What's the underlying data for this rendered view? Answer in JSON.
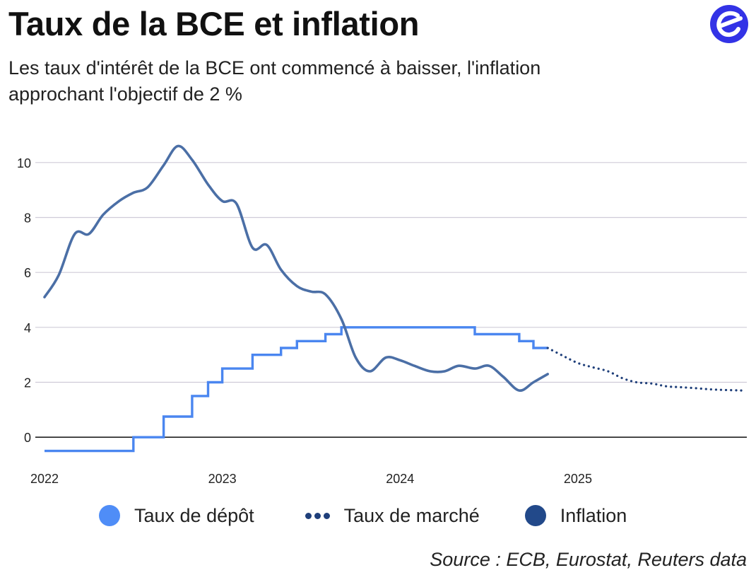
{
  "header": {
    "title": "Taux de la BCE et inflation",
    "subtitle": "Les taux d'intérêt de la BCE ont commencé à baisser, l'inflation approchant l'objectif de 2 %"
  },
  "logo": {
    "icon": "euronews-e-icon",
    "color": "#3333e6"
  },
  "source": "Source : ECB, Eurostat, Reuters data",
  "chart_data": {
    "type": "line",
    "title": "Taux de la BCE et inflation",
    "xlabel": "",
    "ylabel": "",
    "xlim": [
      2022.0,
      2025.95
    ],
    "ylim": [
      -1,
      11
    ],
    "x_ticks": [
      "2022",
      "2023",
      "2024",
      "2025"
    ],
    "y_ticks": [
      "0",
      "2",
      "4",
      "6",
      "8",
      "10"
    ],
    "grid": true,
    "legend_position": "bottom",
    "series": [
      {
        "name": "Taux de dépôt",
        "style": "step",
        "color": "#4a86f0",
        "points": [
          [
            2022.0,
            -0.5
          ],
          [
            2022.5,
            -0.5
          ],
          [
            2022.5,
            0
          ],
          [
            2022.67,
            0
          ],
          [
            2022.67,
            0.75
          ],
          [
            2022.83,
            0.75
          ],
          [
            2022.83,
            1.5
          ],
          [
            2022.92,
            1.5
          ],
          [
            2022.92,
            2.0
          ],
          [
            2023.0,
            2.0
          ],
          [
            2023.0,
            2.5
          ],
          [
            2023.17,
            2.5
          ],
          [
            2023.17,
            3.0
          ],
          [
            2023.33,
            3.0
          ],
          [
            2023.33,
            3.25
          ],
          [
            2023.42,
            3.25
          ],
          [
            2023.42,
            3.5
          ],
          [
            2023.58,
            3.5
          ],
          [
            2023.58,
            3.75
          ],
          [
            2023.67,
            3.75
          ],
          [
            2023.67,
            4.0
          ],
          [
            2024.42,
            4.0
          ],
          [
            2024.42,
            3.75
          ],
          [
            2024.67,
            3.75
          ],
          [
            2024.67,
            3.5
          ],
          [
            2024.75,
            3.5
          ],
          [
            2024.75,
            3.25
          ],
          [
            2024.83,
            3.25
          ]
        ]
      },
      {
        "name": "Taux de marché",
        "style": "dotted",
        "color": "#1f3f7a",
        "points": [
          [
            2024.83,
            3.25
          ],
          [
            2024.92,
            2.95
          ],
          [
            2025.0,
            2.7
          ],
          [
            2025.08,
            2.55
          ],
          [
            2025.17,
            2.4
          ],
          [
            2025.25,
            2.15
          ],
          [
            2025.33,
            2.0
          ],
          [
            2025.42,
            1.95
          ],
          [
            2025.5,
            1.85
          ],
          [
            2025.58,
            1.82
          ],
          [
            2025.67,
            1.78
          ],
          [
            2025.75,
            1.74
          ],
          [
            2025.83,
            1.72
          ],
          [
            2025.92,
            1.7
          ]
        ]
      },
      {
        "name": "Inflation",
        "style": "line",
        "color": "#4b6fa6",
        "points": [
          [
            2022.0,
            5.1
          ],
          [
            2022.08,
            5.9
          ],
          [
            2022.17,
            7.4
          ],
          [
            2022.25,
            7.4
          ],
          [
            2022.33,
            8.1
          ],
          [
            2022.42,
            8.6
          ],
          [
            2022.5,
            8.9
          ],
          [
            2022.58,
            9.1
          ],
          [
            2022.67,
            9.9
          ],
          [
            2022.75,
            10.6
          ],
          [
            2022.83,
            10.1
          ],
          [
            2022.92,
            9.2
          ],
          [
            2023.0,
            8.6
          ],
          [
            2023.08,
            8.5
          ],
          [
            2023.17,
            6.9
          ],
          [
            2023.25,
            7.0
          ],
          [
            2023.33,
            6.1
          ],
          [
            2023.42,
            5.5
          ],
          [
            2023.5,
            5.3
          ],
          [
            2023.58,
            5.2
          ],
          [
            2023.67,
            4.3
          ],
          [
            2023.75,
            2.9
          ],
          [
            2023.83,
            2.4
          ],
          [
            2023.92,
            2.9
          ],
          [
            2024.0,
            2.8
          ],
          [
            2024.08,
            2.6
          ],
          [
            2024.17,
            2.4
          ],
          [
            2024.25,
            2.4
          ],
          [
            2024.33,
            2.6
          ],
          [
            2024.42,
            2.5
          ],
          [
            2024.5,
            2.6
          ],
          [
            2024.58,
            2.2
          ],
          [
            2024.67,
            1.7
          ],
          [
            2024.75,
            2.0
          ],
          [
            2024.83,
            2.3
          ]
        ]
      }
    ]
  },
  "legend": {
    "items": [
      {
        "label": "Taux de dépôt",
        "marker": "circle",
        "color": "#4f8df7"
      },
      {
        "label": "Taux de marché",
        "marker": "dots",
        "color": "#1f3f7a"
      },
      {
        "label": "Inflation",
        "marker": "circle",
        "color": "#22498a"
      }
    ]
  }
}
